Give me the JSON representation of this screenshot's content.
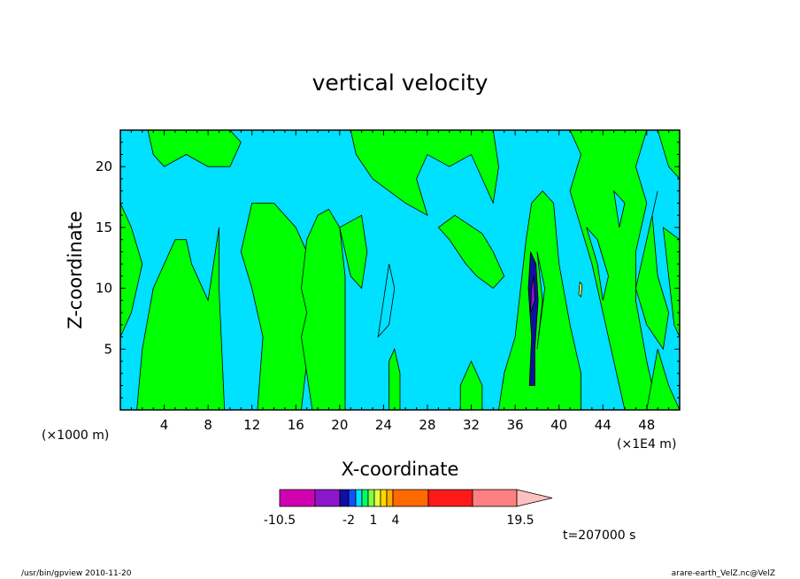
{
  "chart_data": {
    "type": "heatmap",
    "title": "vertical velocity",
    "xlabel": "X-coordinate",
    "ylabel": "Z-coordinate",
    "x_unit_left": "(×1000 m)",
    "x_unit_right": "(×1E4 m)",
    "x_ticks": [
      "4",
      "8",
      "12",
      "16",
      "20",
      "24",
      "28",
      "32",
      "36",
      "40",
      "44",
      "48"
    ],
    "y_ticks": [
      "5",
      "10",
      "15",
      "20"
    ],
    "xlim": [
      0,
      51
    ],
    "ylim": [
      0,
      23
    ],
    "colorbar": {
      "colors": [
        "#d100b0",
        "#8c16c8",
        "#0f0fa0",
        "#1250ff",
        "#00e0ff",
        "#00ff66",
        "#80ff40",
        "#e6ff40",
        "#ffd800",
        "#ffae00",
        "#ff6a00",
        "#ff1a1a",
        "#ff8080",
        "#ffc0c0"
      ],
      "labels": [
        "-10.5",
        "-2",
        "1",
        "4",
        "19.5"
      ]
    },
    "regions": [
      {
        "color": "#00ff00",
        "points": [
          [
            0,
            23
          ],
          [
            2.5,
            23
          ],
          [
            3,
            21
          ],
          [
            4,
            20
          ],
          [
            6,
            21
          ],
          [
            8,
            20
          ],
          [
            10,
            20
          ],
          [
            11,
            22
          ],
          [
            10,
            23
          ],
          [
            0,
            23
          ]
        ]
      },
      {
        "color": "#00ff00",
        "points": [
          [
            0,
            17
          ],
          [
            1,
            15
          ],
          [
            2,
            12
          ],
          [
            1,
            8
          ],
          [
            0,
            6
          ]
        ]
      },
      {
        "color": "#00ff00",
        "points": [
          [
            1.5,
            0
          ],
          [
            2,
            5
          ],
          [
            3,
            10
          ],
          [
            4,
            12
          ],
          [
            5,
            14
          ],
          [
            6,
            14
          ],
          [
            6.5,
            12
          ],
          [
            8,
            9
          ],
          [
            8.5,
            12
          ],
          [
            9,
            15
          ],
          [
            9,
            10
          ],
          [
            9.5,
            0
          ]
        ]
      },
      {
        "color": "#00ff00",
        "points": [
          [
            12.5,
            0
          ],
          [
            13,
            6
          ],
          [
            12,
            10
          ],
          [
            11,
            13
          ],
          [
            12,
            17
          ],
          [
            14,
            17
          ],
          [
            16,
            15
          ],
          [
            18,
            11
          ],
          [
            18,
            7
          ],
          [
            17,
            4
          ],
          [
            16.5,
            0
          ]
        ]
      },
      {
        "color": "#00ff00",
        "points": [
          [
            17.5,
            0
          ],
          [
            17,
            3
          ],
          [
            16.5,
            6
          ],
          [
            17,
            8
          ],
          [
            16.5,
            10
          ],
          [
            17,
            14
          ],
          [
            18,
            16
          ],
          [
            19,
            16.5
          ],
          [
            20,
            15
          ],
          [
            20.5,
            11
          ],
          [
            20.5,
            6
          ],
          [
            20.5,
            0
          ]
        ]
      },
      {
        "color": "#00ff00",
        "points": [
          [
            21,
            23
          ],
          [
            21.5,
            21
          ],
          [
            23,
            19
          ],
          [
            26,
            17
          ],
          [
            28,
            16
          ],
          [
            27,
            19
          ],
          [
            28,
            21
          ],
          [
            30,
            20
          ],
          [
            32,
            21
          ],
          [
            33,
            19
          ],
          [
            34,
            17
          ],
          [
            34.5,
            20
          ],
          [
            34,
            23
          ]
        ]
      },
      {
        "color": "#00ff00",
        "points": [
          [
            20,
            15
          ],
          [
            21,
            11
          ],
          [
            22,
            10
          ],
          [
            22.5,
            13
          ],
          [
            22,
            16
          ]
        ]
      },
      {
        "color": "#00ff00",
        "points": [
          [
            24.5,
            0
          ],
          [
            24.5,
            4
          ],
          [
            25,
            5
          ],
          [
            25.5,
            3
          ],
          [
            25.5,
            0
          ]
        ]
      },
      {
        "color": "#00ff00",
        "points": [
          [
            29,
            15
          ],
          [
            30,
            14
          ],
          [
            31.5,
            12
          ],
          [
            32.5,
            11
          ],
          [
            34,
            10
          ],
          [
            35,
            11
          ],
          [
            34,
            13
          ],
          [
            33,
            14.5
          ],
          [
            30.5,
            16
          ]
        ]
      },
      {
        "color": "#00ff00",
        "points": [
          [
            31,
            0
          ],
          [
            31,
            2
          ],
          [
            32,
            4
          ],
          [
            33,
            2
          ],
          [
            33,
            0
          ]
        ]
      },
      {
        "color": "#00ff00",
        "points": [
          [
            34.5,
            0
          ],
          [
            35,
            3
          ],
          [
            36,
            6
          ],
          [
            36.5,
            10
          ],
          [
            37,
            14
          ],
          [
            37.5,
            17
          ],
          [
            38.5,
            18
          ],
          [
            39.5,
            17
          ],
          [
            40,
            12
          ],
          [
            41,
            7
          ],
          [
            42,
            3
          ],
          [
            42,
            0
          ]
        ]
      },
      {
        "color": "#00ff00",
        "points": [
          [
            41,
            23
          ],
          [
            42,
            21
          ],
          [
            41,
            18
          ],
          [
            42,
            15
          ],
          [
            43,
            12
          ],
          [
            44,
            8
          ],
          [
            45,
            4
          ],
          [
            46,
            0
          ],
          [
            49,
            0
          ],
          [
            48,
            4
          ],
          [
            47,
            9
          ],
          [
            47,
            13
          ],
          [
            48,
            17
          ],
          [
            47,
            20
          ],
          [
            48,
            23
          ]
        ]
      },
      {
        "color": "#00ff00",
        "points": [
          [
            47,
            10
          ],
          [
            48,
            7
          ],
          [
            49.5,
            5
          ],
          [
            50,
            8
          ],
          [
            49,
            11
          ],
          [
            48.5,
            16
          ],
          [
            49,
            18
          ]
        ]
      },
      {
        "color": "#00ff00",
        "points": [
          [
            49.5,
            15
          ],
          [
            51,
            14
          ],
          [
            51,
            6
          ],
          [
            50.5,
            7
          ]
        ]
      },
      {
        "color": "#00ff00",
        "points": [
          [
            49,
            23
          ],
          [
            50,
            20
          ],
          [
            51,
            19
          ],
          [
            51,
            23
          ]
        ]
      },
      {
        "color": "#00ff00",
        "points": [
          [
            48,
            0
          ],
          [
            49,
            5
          ],
          [
            50,
            2
          ],
          [
            51,
            0
          ]
        ]
      },
      {
        "color": "#00e0ff",
        "points": [
          [
            23.5,
            6
          ],
          [
            24,
            9
          ],
          [
            24.5,
            12
          ],
          [
            25,
            10
          ],
          [
            24.5,
            7
          ]
        ]
      },
      {
        "color": "#00e0ff",
        "points": [
          [
            42.5,
            15
          ],
          [
            43.5,
            12
          ],
          [
            44,
            9
          ],
          [
            44.5,
            11
          ],
          [
            43.5,
            14
          ]
        ]
      },
      {
        "color": "#00e0ff",
        "points": [
          [
            45,
            18
          ],
          [
            45.5,
            15
          ],
          [
            46,
            17
          ]
        ]
      },
      {
        "color": "#00e0ff",
        "points": [
          [
            38,
            5
          ],
          [
            38.5,
            9
          ],
          [
            38,
            13
          ],
          [
            38.7,
            10
          ]
        ]
      },
      {
        "color": "#0f0fa0",
        "points": [
          [
            37.3,
            2
          ],
          [
            37.5,
            6
          ],
          [
            37.2,
            10
          ],
          [
            37.4,
            13
          ],
          [
            37.9,
            12
          ],
          [
            38.1,
            9
          ],
          [
            37.8,
            5
          ],
          [
            37.8,
            2
          ]
        ]
      },
      {
        "color": "#8c16c8",
        "points": [
          [
            37.4,
            8
          ],
          [
            37.5,
            10
          ],
          [
            37.7,
            11
          ],
          [
            37.8,
            9
          ]
        ]
      },
      {
        "color": "#e6ff40",
        "points": [
          [
            41.8,
            9.5
          ],
          [
            41.9,
            10.5
          ],
          [
            42.1,
            10.3
          ],
          [
            42,
            9.3
          ]
        ]
      }
    ],
    "time_label": "t=207000 s"
  },
  "footer": {
    "left": "/usr/bin/gpview  2010-11-20",
    "right": "arare-earth_VelZ.nc@VelZ"
  }
}
